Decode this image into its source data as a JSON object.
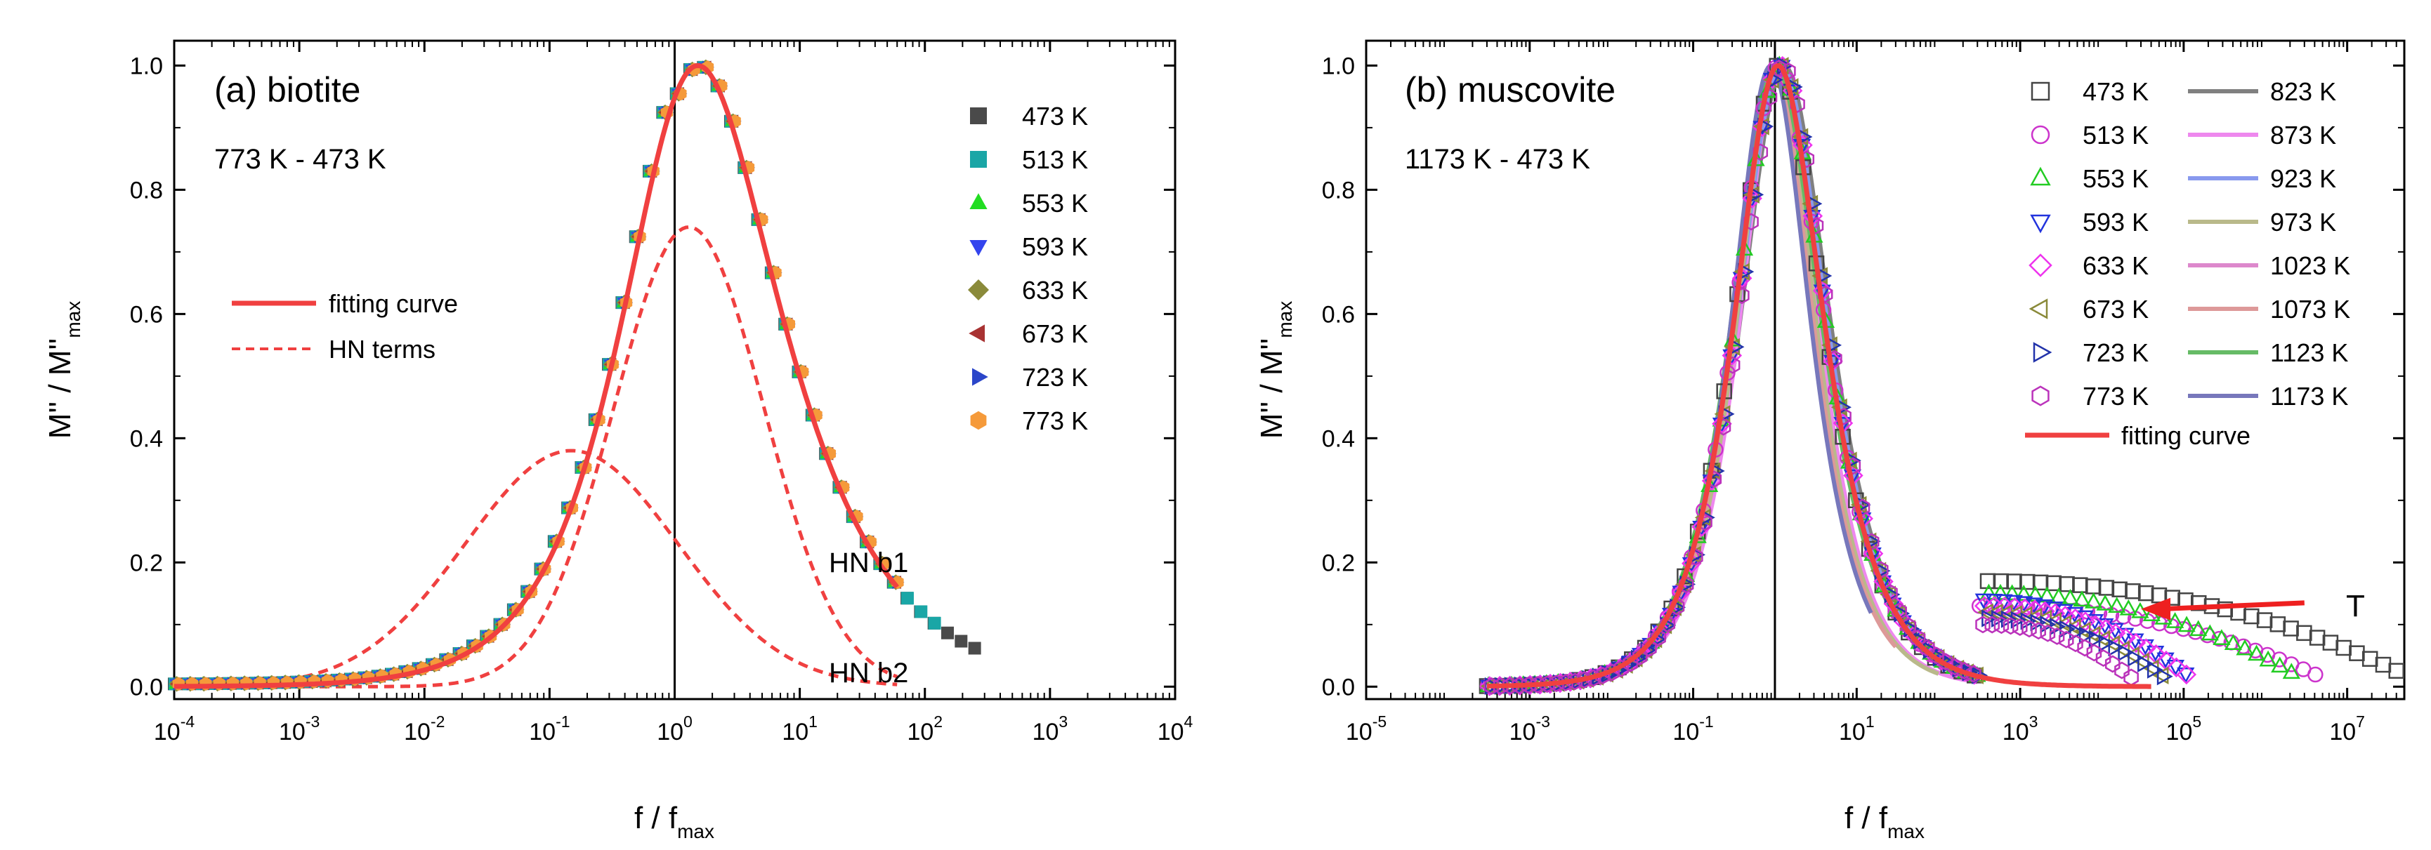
{
  "chart_data": [
    {
      "type": "scatter",
      "panel_label": "(a) biotite",
      "temperature_range": "773 K - 473 K",
      "xlabel": {
        "main": "f / f",
        "sub": "max"
      },
      "ylabel": {
        "main": "M'' / M''",
        "sub": "max"
      },
      "xscale": "log",
      "xlim": [
        0.0001,
        10000
      ],
      "ylim": [
        -0.02,
        1.04
      ],
      "xticks": [
        {
          "value": 0.0001,
          "base": "10",
          "exp": "-4"
        },
        {
          "value": 0.001,
          "base": "10",
          "exp": "-3"
        },
        {
          "value": 0.01,
          "base": "10",
          "exp": "-2"
        },
        {
          "value": 0.1,
          "base": "10",
          "exp": "-1"
        },
        {
          "value": 1,
          "base": "10",
          "exp": "0"
        },
        {
          "value": 10,
          "base": "10",
          "exp": "1"
        },
        {
          "value": 100,
          "base": "10",
          "exp": "2"
        },
        {
          "value": 1000,
          "base": "10",
          "exp": "3"
        },
        {
          "value": 10000,
          "base": "10",
          "exp": "4"
        }
      ],
      "yticks": [
        {
          "value": 0.0,
          "label": "0.0"
        },
        {
          "value": 0.2,
          "label": "0.2"
        },
        {
          "value": 0.4,
          "label": "0.4"
        },
        {
          "value": 0.6,
          "label": "0.6"
        },
        {
          "value": 0.8,
          "label": "0.8"
        },
        {
          "value": 1.0,
          "label": "1.0"
        }
      ],
      "reference_line_x": 1,
      "model": {
        "alpha": 0.9,
        "beta": 0.75,
        "w0": 0.85,
        "amp": 1.0,
        "xmin": 0.0001,
        "xmax": 60
      },
      "series": [
        {
          "name": "473 K",
          "color": "#4a4a4a",
          "marker": "square",
          "ymax_x": 250
        },
        {
          "name": "513 K",
          "color": "#1aa6a6",
          "marker": "square",
          "ymax_x": 140
        },
        {
          "name": "553 K",
          "color": "#22dd22",
          "marker": "triangle-up",
          "ymax_x": 60
        },
        {
          "name": "593 K",
          "color": "#3344ee",
          "marker": "triangle-down",
          "ymax_x": 60
        },
        {
          "name": "633 K",
          "color": "#8a8a3a",
          "marker": "diamond",
          "ymax_x": 60
        },
        {
          "name": "673 K",
          "color": "#a83232",
          "marker": "triangle-left",
          "ymax_x": 60
        },
        {
          "name": "723 K",
          "color": "#2b46c9",
          "marker": "triangle-right",
          "ymax_x": 60
        },
        {
          "name": "773 K",
          "color": "#f59a3a",
          "marker": "hexagon",
          "ymax_x": 60
        }
      ],
      "fit_curve": {
        "label": "fitting curve",
        "color": "#f04040",
        "style": "solid"
      },
      "hn_terms": {
        "label": "HN terms",
        "color": "#f04040",
        "style": "dashed"
      },
      "hn_components": [
        {
          "label": "HN b1",
          "peak_x": 1.3,
          "peak_y": 0.74,
          "width": 0.85,
          "xmin": 0.0001,
          "xmax": 60
        },
        {
          "label": "HN b2",
          "peak_x": 0.15,
          "peak_y": 0.38,
          "width": 1.2,
          "xmin": 0.0001,
          "xmax": 60
        }
      ]
    },
    {
      "type": "scatter",
      "panel_label": "(b) muscovite",
      "temperature_range": "1173 K - 473 K",
      "xlabel": {
        "main": "f / f",
        "sub": "max"
      },
      "ylabel": {
        "main": "M'' / M''",
        "sub": "max"
      },
      "xscale": "log",
      "xlim": [
        1e-05,
        50000000
      ],
      "ylim": [
        -0.02,
        1.04
      ],
      "xticks": [
        {
          "value": 1e-05,
          "base": "10",
          "exp": "-5"
        },
        {
          "value": 0.001,
          "base": "10",
          "exp": "-3"
        },
        {
          "value": 0.1,
          "base": "10",
          "exp": "-1"
        },
        {
          "value": 10,
          "base": "10",
          "exp": "1"
        },
        {
          "value": 1000,
          "base": "10",
          "exp": "3"
        },
        {
          "value": 100000,
          "base": "10",
          "exp": "5"
        },
        {
          "value": 10000000,
          "base": "10",
          "exp": "7"
        }
      ],
      "yticks": [
        {
          "value": 0.0,
          "label": "0.0"
        },
        {
          "value": 0.2,
          "label": "0.2"
        },
        {
          "value": 0.4,
          "label": "0.4"
        },
        {
          "value": 0.6,
          "label": "0.6"
        },
        {
          "value": 0.8,
          "label": "0.8"
        },
        {
          "value": 1.0,
          "label": "1.0"
        }
      ],
      "reference_line_x": 1,
      "fit_curve": {
        "label": "fitting curve",
        "color": "#f04040",
        "style": "solid",
        "xmin": 0.0003,
        "xmax": 40000
      },
      "marker_series": [
        {
          "name": "473 K",
          "color": "#444444",
          "marker": "square",
          "xmin": 0.0003,
          "xmax": 40000000,
          "tail_level": 0.17,
          "tail_start": 300,
          "tail_end": 40000000
        },
        {
          "name": "513 K",
          "color": "#cc33cc",
          "marker": "circle",
          "xmin": 0.0003,
          "xmax": 4000000,
          "tail_level": 0.13,
          "tail_start": 300,
          "tail_end": 4000000
        },
        {
          "name": "553 K",
          "color": "#22cc22",
          "marker": "triangle-up",
          "xmin": 0.0003,
          "xmax": 2000000,
          "tail_level": 0.15,
          "tail_start": 300,
          "tail_end": 2000000
        },
        {
          "name": "593 K",
          "color": "#2233dd",
          "marker": "triangle-down",
          "xmin": 0.0003,
          "xmax": 100000,
          "tail_level": 0.14,
          "tail_start": 300,
          "tail_end": 100000
        },
        {
          "name": "633 K",
          "color": "#ee33ee",
          "marker": "diamond",
          "xmin": 0.0003,
          "xmax": 100000,
          "tail_level": 0.13,
          "tail_start": 300,
          "tail_end": 100000
        },
        {
          "name": "673 K",
          "color": "#8a8a3a",
          "marker": "triangle-left",
          "xmin": 0.0003,
          "xmax": 50000,
          "tail_level": 0.12,
          "tail_start": 300,
          "tail_end": 50000
        },
        {
          "name": "723 K",
          "color": "#2233aa",
          "marker": "triangle-right",
          "xmin": 0.0003,
          "xmax": 50000,
          "tail_level": 0.11,
          "tail_start": 300,
          "tail_end": 50000
        },
        {
          "name": "773 K",
          "color": "#bb33bb",
          "marker": "hexagon",
          "xmin": 0.0003,
          "xmax": 20000,
          "tail_level": 0.1,
          "tail_start": 300,
          "tail_end": 20000
        }
      ],
      "line_series": [
        {
          "name": "823 K",
          "color": "#808080",
          "xmin": 0.003,
          "xmax": 300
        },
        {
          "name": "873 K",
          "color": "#ee88ee",
          "xmin": 0.003,
          "xmax": 300
        },
        {
          "name": "923 K",
          "color": "#8899ee",
          "xmin": 0.003,
          "xmax": 300
        },
        {
          "name": "973 K",
          "color": "#b9b98a",
          "xmin": 0.003,
          "xmax": 100
        },
        {
          "name": "1023 K",
          "color": "#dd88cc",
          "xmin": 0.001,
          "xmax": 100
        },
        {
          "name": "1073 K",
          "color": "#dd9999",
          "xmin": 0.001,
          "xmax": 30
        },
        {
          "name": "1123 K",
          "color": "#66bb66",
          "xmin": 0.001,
          "xmax": 30
        },
        {
          "name": "1173 K",
          "color": "#7777bb",
          "xmin": 0.001,
          "xmax": 15
        }
      ],
      "annotation": {
        "label": "T",
        "tip_x": 30000,
        "tip_y": 0.125,
        "tail_x": 3000000,
        "tail_y": 0.135,
        "color": "#ee2020"
      }
    }
  ]
}
